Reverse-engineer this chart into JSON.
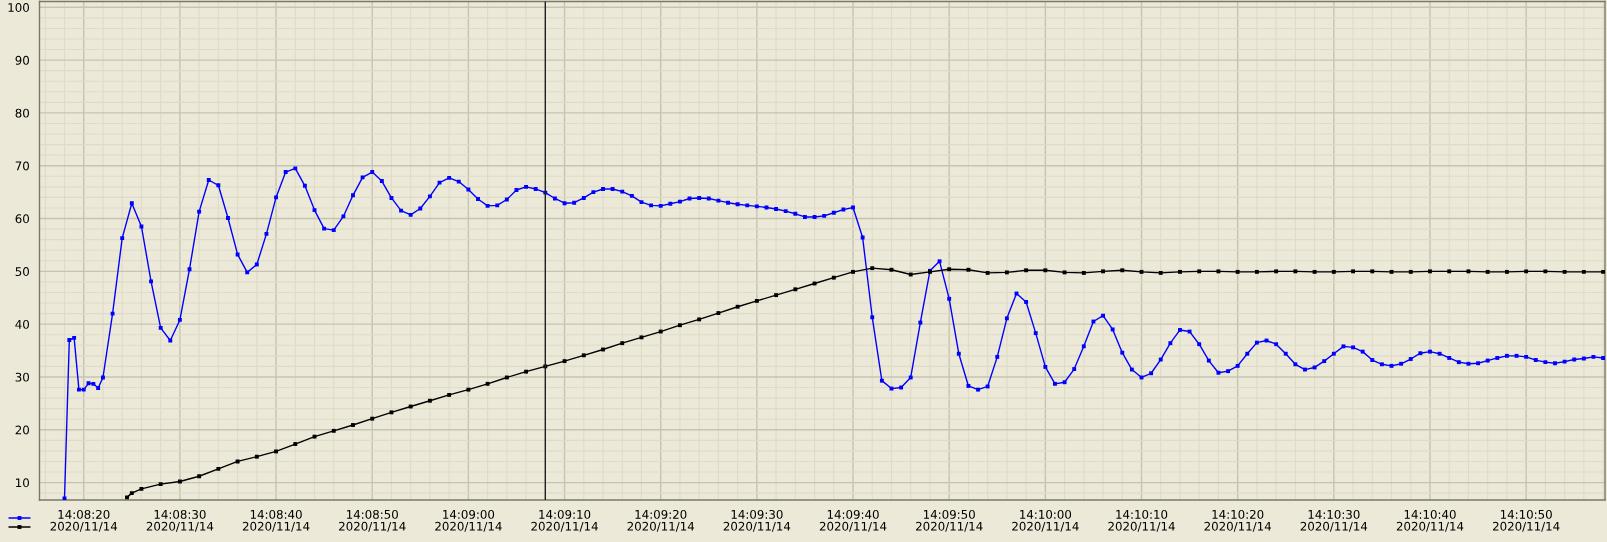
{
  "chart_data": {
    "type": "line",
    "marker": "square",
    "grid": true,
    "xlim": [
      "2020-11-14T14:08:15.4",
      "2020-11-14T14:10:58.2"
    ],
    "xticks": [
      {
        "value": "2020-11-14T14:08:20",
        "label": "14:08:20\n2020/11/14"
      },
      {
        "value": "2020-11-14T14:08:30",
        "label": "14:08:30\n2020/11/14"
      },
      {
        "value": "2020-11-14T14:08:40",
        "label": "14:08:40\n2020/11/14"
      },
      {
        "value": "2020-11-14T14:08:50",
        "label": "14:08:50\n2020/11/14"
      },
      {
        "value": "2020-11-14T14:09:00",
        "label": "14:09:00\n2020/11/14"
      },
      {
        "value": "2020-11-14T14:09:10",
        "label": "14:09:10\n2020/11/14"
      },
      {
        "value": "2020-11-14T14:09:20",
        "label": "14:09:20\n2020/11/14"
      },
      {
        "value": "2020-11-14T14:09:30",
        "label": "14:09:30\n2020/11/14"
      },
      {
        "value": "2020-11-14T14:09:40",
        "label": "14:09:40\n2020/11/14"
      },
      {
        "value": "2020-11-14T14:09:50",
        "label": "14:09:50\n2020/11/14"
      },
      {
        "value": "2020-11-14T14:10:00",
        "label": "14:10:00\n2020/11/14"
      },
      {
        "value": "2020-11-14T14:10:10",
        "label": "14:10:10\n2020/11/14"
      },
      {
        "value": "2020-11-14T14:10:20",
        "label": "14:10:20\n2020/11/14"
      },
      {
        "value": "2020-11-14T14:10:30",
        "label": "14:10:30\n2020/11/14"
      },
      {
        "value": "2020-11-14T14:10:40",
        "label": "14:10:40\n2020/11/14"
      },
      {
        "value": "2020-11-14T14:10:50",
        "label": "14:10:50\n2020/11/14"
      }
    ],
    "ylim": [
      6.7,
      101.1
    ],
    "yticks": [
      10,
      20,
      30,
      40,
      50,
      60,
      70,
      80,
      90,
      100
    ],
    "ref_lines": [
      {
        "axis": "x",
        "value": "2020-11-14T14:09:08",
        "color": "#202020"
      }
    ],
    "series": [
      {
        "color": "#0000ff",
        "x": [
          "2020-11-14T14:08:18",
          "2020-11-14T14:08:18.5",
          "2020-11-14T14:08:19",
          "2020-11-14T14:08:19.5",
          "2020-11-14T14:08:20",
          "2020-11-14T14:08:20.5",
          "2020-11-14T14:08:21",
          "2020-11-14T14:08:21.5",
          "2020-11-14T14:08:22",
          "2020-11-14T14:08:23",
          "2020-11-14T14:08:24",
          "2020-11-14T14:08:25",
          "2020-11-14T14:08:26",
          "2020-11-14T14:08:27",
          "2020-11-14T14:08:28",
          "2020-11-14T14:08:29",
          "2020-11-14T14:08:30",
          "2020-11-14T14:08:31",
          "2020-11-14T14:08:32",
          "2020-11-14T14:08:33",
          "2020-11-14T14:08:34",
          "2020-11-14T14:08:35",
          "2020-11-14T14:08:36",
          "2020-11-14T14:08:37",
          "2020-11-14T14:08:38",
          "2020-11-14T14:08:39",
          "2020-11-14T14:08:40",
          "2020-11-14T14:08:41",
          "2020-11-14T14:08:42",
          "2020-11-14T14:08:43",
          "2020-11-14T14:08:44",
          "2020-11-14T14:08:45",
          "2020-11-14T14:08:46",
          "2020-11-14T14:08:47",
          "2020-11-14T14:08:48",
          "2020-11-14T14:08:49",
          "2020-11-14T14:08:50",
          "2020-11-14T14:08:51",
          "2020-11-14T14:08:52",
          "2020-11-14T14:08:53",
          "2020-11-14T14:08:54",
          "2020-11-14T14:08:55",
          "2020-11-14T14:08:56",
          "2020-11-14T14:08:57",
          "2020-11-14T14:08:58",
          "2020-11-14T14:08:59",
          "2020-11-14T14:09:00",
          "2020-11-14T14:09:01",
          "2020-11-14T14:09:02",
          "2020-11-14T14:09:03",
          "2020-11-14T14:09:04",
          "2020-11-14T14:09:05",
          "2020-11-14T14:09:06",
          "2020-11-14T14:09:07",
          "2020-11-14T14:09:08",
          "2020-11-14T14:09:09",
          "2020-11-14T14:09:10",
          "2020-11-14T14:09:11",
          "2020-11-14T14:09:12",
          "2020-11-14T14:09:13",
          "2020-11-14T14:09:14",
          "2020-11-14T14:09:15",
          "2020-11-14T14:09:16",
          "2020-11-14T14:09:17",
          "2020-11-14T14:09:18",
          "2020-11-14T14:09:19",
          "2020-11-14T14:09:20",
          "2020-11-14T14:09:21",
          "2020-11-14T14:09:22",
          "2020-11-14T14:09:23",
          "2020-11-14T14:09:24",
          "2020-11-14T14:09:25",
          "2020-11-14T14:09:26",
          "2020-11-14T14:09:27",
          "2020-11-14T14:09:28",
          "2020-11-14T14:09:29",
          "2020-11-14T14:09:30",
          "2020-11-14T14:09:31",
          "2020-11-14T14:09:32",
          "2020-11-14T14:09:33",
          "2020-11-14T14:09:34",
          "2020-11-14T14:09:35",
          "2020-11-14T14:09:36",
          "2020-11-14T14:09:37",
          "2020-11-14T14:09:38",
          "2020-11-14T14:09:39",
          "2020-11-14T14:09:40",
          "2020-11-14T14:09:41",
          "2020-11-14T14:09:42",
          "2020-11-14T14:09:43",
          "2020-11-14T14:09:44",
          "2020-11-14T14:09:45",
          "2020-11-14T14:09:46",
          "2020-11-14T14:09:47",
          "2020-11-14T14:09:48",
          "2020-11-14T14:09:49",
          "2020-11-14T14:09:50",
          "2020-11-14T14:09:51",
          "2020-11-14T14:09:52",
          "2020-11-14T14:09:53",
          "2020-11-14T14:09:54",
          "2020-11-14T14:09:55",
          "2020-11-14T14:09:56",
          "2020-11-14T14:09:57",
          "2020-11-14T14:09:58",
          "2020-11-14T14:09:59",
          "2020-11-14T14:10:00",
          "2020-11-14T14:10:01",
          "2020-11-14T14:10:02",
          "2020-11-14T14:10:03",
          "2020-11-14T14:10:04",
          "2020-11-14T14:10:05",
          "2020-11-14T14:10:06",
          "2020-11-14T14:10:07",
          "2020-11-14T14:10:08",
          "2020-11-14T14:10:09",
          "2020-11-14T14:10:10",
          "2020-11-14T14:10:11",
          "2020-11-14T14:10:12",
          "2020-11-14T14:10:13",
          "2020-11-14T14:10:14",
          "2020-11-14T14:10:15",
          "2020-11-14T14:10:16",
          "2020-11-14T14:10:17",
          "2020-11-14T14:10:18",
          "2020-11-14T14:10:19",
          "2020-11-14T14:10:20",
          "2020-11-14T14:10:21",
          "2020-11-14T14:10:22",
          "2020-11-14T14:10:23",
          "2020-11-14T14:10:24",
          "2020-11-14T14:10:25",
          "2020-11-14T14:10:26",
          "2020-11-14T14:10:27",
          "2020-11-14T14:10:28",
          "2020-11-14T14:10:29",
          "2020-11-14T14:10:30",
          "2020-11-14T14:10:31",
          "2020-11-14T14:10:32",
          "2020-11-14T14:10:33",
          "2020-11-14T14:10:34",
          "2020-11-14T14:10:35",
          "2020-11-14T14:10:36",
          "2020-11-14T14:10:37",
          "2020-11-14T14:10:38",
          "2020-11-14T14:10:39",
          "2020-11-14T14:10:40",
          "2020-11-14T14:10:41",
          "2020-11-14T14:10:42",
          "2020-11-14T14:10:43",
          "2020-11-14T14:10:44",
          "2020-11-14T14:10:45",
          "2020-11-14T14:10:46",
          "2020-11-14T14:10:47",
          "2020-11-14T14:10:48",
          "2020-11-14T14:10:49",
          "2020-11-14T14:10:50",
          "2020-11-14T14:10:51",
          "2020-11-14T14:10:52",
          "2020-11-14T14:10:53",
          "2020-11-14T14:10:54",
          "2020-11-14T14:10:55",
          "2020-11-14T14:10:56",
          "2020-11-14T14:10:57",
          "2020-11-14T14:10:58"
        ],
        "values": [
          7.0,
          37.0,
          37.4,
          27.6,
          27.6,
          28.8,
          28.7,
          27.9,
          29.9,
          42.0,
          56.3,
          62.9,
          58.5,
          48.1,
          39.3,
          36.9,
          40.8,
          50.4,
          61.3,
          67.3,
          66.3,
          60.1,
          53.2,
          49.8,
          51.3,
          57.1,
          64.0,
          68.8,
          69.5,
          66.2,
          61.6,
          58.1,
          57.8,
          60.4,
          64.4,
          67.8,
          68.8,
          67.1,
          63.9,
          61.5,
          60.7,
          61.9,
          64.2,
          66.8,
          67.7,
          67.0,
          65.5,
          63.7,
          62.4,
          62.5,
          63.6,
          65.4,
          66.0,
          65.6,
          64.9,
          63.8,
          62.9,
          63.0,
          63.9,
          65.0,
          65.6,
          65.6,
          65.1,
          64.3,
          63.1,
          62.5,
          62.4,
          62.8,
          63.2,
          63.8,
          63.9,
          63.8,
          63.4,
          63.0,
          62.7,
          62.5,
          62.3,
          62.1,
          61.8,
          61.4,
          60.9,
          60.3,
          60.3,
          60.5,
          61.1,
          61.7,
          62.1,
          56.4,
          41.3,
          29.3,
          27.8,
          28.0,
          29.9,
          40.3,
          50.1,
          51.9,
          44.8,
          34.4,
          28.3,
          27.6,
          28.2,
          33.8,
          41.1,
          45.8,
          44.2,
          38.3,
          31.9,
          28.7,
          29.0,
          31.5,
          35.8,
          40.5,
          41.6,
          39.0,
          34.6,
          31.4,
          29.9,
          30.7,
          33.3,
          36.4,
          38.9,
          38.6,
          36.2,
          33.1,
          30.8,
          31.1,
          32.1,
          34.4,
          36.5,
          36.9,
          36.2,
          34.4,
          32.4,
          31.4,
          31.8,
          33.0,
          34.4,
          35.8,
          35.6,
          34.8,
          33.2,
          32.4,
          32.1,
          32.5,
          33.4,
          34.5,
          34.8,
          34.4,
          33.6,
          32.8,
          32.5,
          32.6,
          33.1,
          33.6,
          34.0,
          34.0,
          33.8,
          33.2,
          32.8,
          32.6,
          32.9,
          33.3,
          33.5,
          33.8,
          33.6
        ]
      },
      {
        "color": "#000000",
        "x": [
          "2020-11-14T14:08:24.5",
          "2020-11-14T14:08:25",
          "2020-11-14T14:08:26",
          "2020-11-14T14:08:28",
          "2020-11-14T14:08:30",
          "2020-11-14T14:08:32",
          "2020-11-14T14:08:34",
          "2020-11-14T14:08:36",
          "2020-11-14T14:08:38",
          "2020-11-14T14:08:40",
          "2020-11-14T14:08:42",
          "2020-11-14T14:08:44",
          "2020-11-14T14:08:46",
          "2020-11-14T14:08:48",
          "2020-11-14T14:08:50",
          "2020-11-14T14:08:52",
          "2020-11-14T14:08:54",
          "2020-11-14T14:08:56",
          "2020-11-14T14:08:58",
          "2020-11-14T14:09:00",
          "2020-11-14T14:09:02",
          "2020-11-14T14:09:04",
          "2020-11-14T14:09:06",
          "2020-11-14T14:09:08",
          "2020-11-14T14:09:10",
          "2020-11-14T14:09:12",
          "2020-11-14T14:09:14",
          "2020-11-14T14:09:16",
          "2020-11-14T14:09:18",
          "2020-11-14T14:09:20",
          "2020-11-14T14:09:22",
          "2020-11-14T14:09:24",
          "2020-11-14T14:09:26",
          "2020-11-14T14:09:28",
          "2020-11-14T14:09:30",
          "2020-11-14T14:09:32",
          "2020-11-14T14:09:34",
          "2020-11-14T14:09:36",
          "2020-11-14T14:09:38",
          "2020-11-14T14:09:40",
          "2020-11-14T14:09:42",
          "2020-11-14T14:09:44",
          "2020-11-14T14:09:46",
          "2020-11-14T14:09:48",
          "2020-11-14T14:09:50",
          "2020-11-14T14:09:52",
          "2020-11-14T14:09:54",
          "2020-11-14T14:09:56",
          "2020-11-14T14:09:58",
          "2020-11-14T14:10:00",
          "2020-11-14T14:10:02",
          "2020-11-14T14:10:04",
          "2020-11-14T14:10:06",
          "2020-11-14T14:10:08",
          "2020-11-14T14:10:10",
          "2020-11-14T14:10:12",
          "2020-11-14T14:10:14",
          "2020-11-14T14:10:16",
          "2020-11-14T14:10:18",
          "2020-11-14T14:10:20",
          "2020-11-14T14:10:22",
          "2020-11-14T14:10:24",
          "2020-11-14T14:10:26",
          "2020-11-14T14:10:28",
          "2020-11-14T14:10:30",
          "2020-11-14T14:10:32",
          "2020-11-14T14:10:34",
          "2020-11-14T14:10:36",
          "2020-11-14T14:10:38",
          "2020-11-14T14:10:40",
          "2020-11-14T14:10:42",
          "2020-11-14T14:10:44",
          "2020-11-14T14:10:46",
          "2020-11-14T14:10:48",
          "2020-11-14T14:10:50",
          "2020-11-14T14:10:52",
          "2020-11-14T14:10:54",
          "2020-11-14T14:10:56",
          "2020-11-14T14:10:58"
        ],
        "values": [
          7.2,
          8.0,
          8.8,
          9.7,
          10.2,
          11.2,
          12.6,
          14.0,
          14.9,
          15.9,
          17.3,
          18.7,
          19.8,
          20.9,
          22.1,
          23.3,
          24.4,
          25.5,
          26.6,
          27.6,
          28.7,
          29.9,
          31.0,
          32.0,
          33.0,
          34.1,
          35.2,
          36.4,
          37.5,
          38.6,
          39.8,
          40.9,
          42.1,
          43.3,
          44.4,
          45.5,
          46.6,
          47.7,
          48.8,
          49.9,
          50.6,
          50.3,
          49.4,
          49.9,
          50.4,
          50.3,
          49.7,
          49.8,
          50.2,
          50.2,
          49.8,
          49.7,
          50.0,
          50.2,
          49.9,
          49.7,
          49.9,
          50.0,
          50.0,
          49.9,
          49.9,
          50.0,
          50.0,
          49.9,
          49.9,
          50.0,
          50.0,
          49.9,
          49.9,
          50.0,
          50.0,
          50.0,
          49.9,
          49.9,
          50.0,
          50.0,
          49.9,
          49.9,
          49.9
        ]
      }
    ]
  }
}
